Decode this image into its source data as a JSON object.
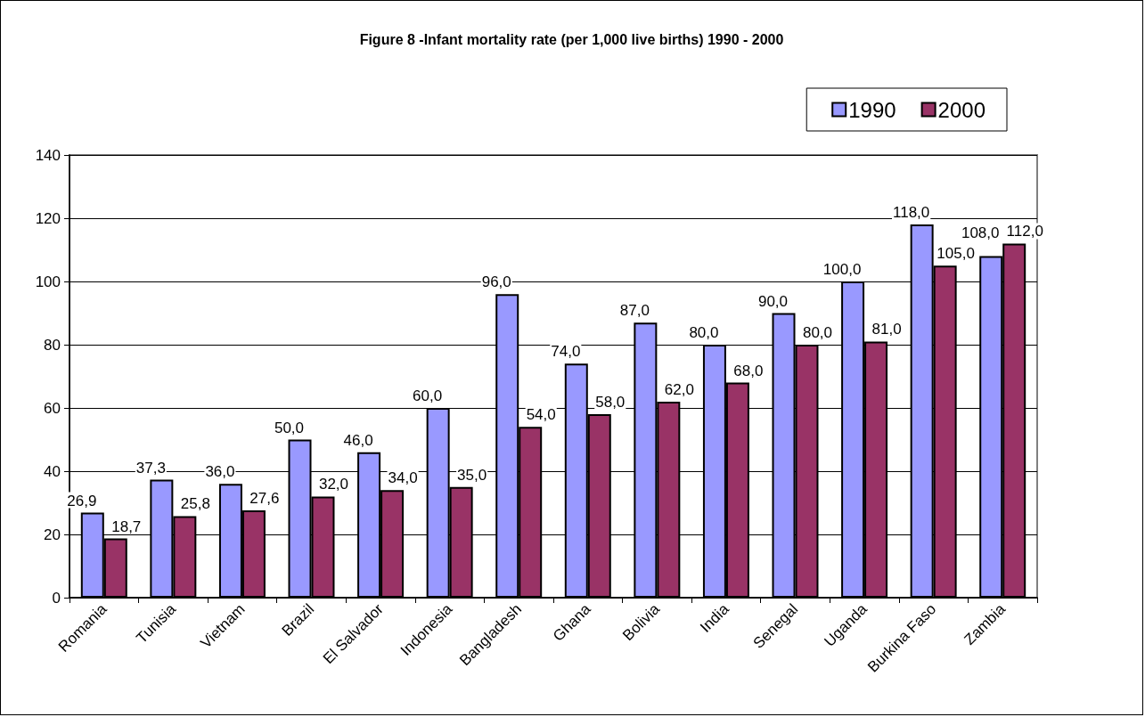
{
  "chart_data": {
    "type": "bar",
    "title": "Figure 8 -Infant mortality rate (per 1,000 live births) 1990 - 2000",
    "categories": [
      "Romania",
      "Tunisia",
      "Vietnam",
      "Brazil",
      "El Salvador",
      "Indonesia",
      "Bangladesh",
      "Ghana",
      "Bolivia",
      "India",
      "Senegal",
      "Uganda",
      "Burkina Faso",
      "Zambia"
    ],
    "series": [
      {
        "name": "1990",
        "color": "#9999ff",
        "values": [
          26.9,
          37.3,
          36.0,
          50.0,
          46.0,
          60.0,
          96.0,
          74.0,
          87.0,
          80.0,
          90.0,
          100.0,
          118.0,
          108.0
        ],
        "value_labels": [
          "26,9",
          "37,3",
          "36,0",
          "50,0",
          "46,0",
          "60,0",
          "96,0",
          "74,0",
          "87,0",
          "80,0",
          "90,0",
          "100,0",
          "118,0",
          "108,0"
        ]
      },
      {
        "name": "2000",
        "color": "#993366",
        "values": [
          18.7,
          25.8,
          27.6,
          32.0,
          34.0,
          35.0,
          54.0,
          58.0,
          62.0,
          68.0,
          80.0,
          81.0,
          105.0,
          112.0
        ],
        "value_labels": [
          "18,7",
          "25,8",
          "27,6",
          "32,0",
          "34,0",
          "35,0",
          "54,0",
          "58,0",
          "62,0",
          "68,0",
          "80,0",
          "81,0",
          "105,0",
          "112,0"
        ]
      }
    ],
    "ylim": [
      0,
      140
    ],
    "yticks": [
      0,
      20,
      40,
      60,
      80,
      100,
      120,
      140
    ],
    "grid": "y",
    "legend": "top right"
  }
}
